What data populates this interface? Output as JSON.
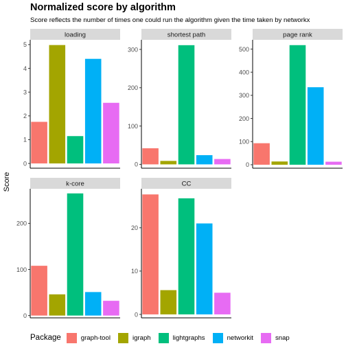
{
  "title": "Normalized score by algorithm",
  "subtitle": "Score reflects the number of times one could run the algorithm given the time taken by networkx",
  "ylabel": "Score",
  "legend": {
    "title": "Package",
    "position": "bottom"
  },
  "chart_data": {
    "type": "bar",
    "categories": [
      "graph-tool",
      "igraph",
      "lightgraphs",
      "networkit",
      "snap"
    ],
    "colors": {
      "graph-tool": "#F8766D",
      "igraph": "#A3A500",
      "lightgraphs": "#00BF7D",
      "networkit": "#00B0F6",
      "snap": "#E76BF3"
    },
    "facets": [
      {
        "name": "loading",
        "values": [
          1.75,
          4.98,
          1.15,
          4.4,
          2.55
        ],
        "ylim": [
          -0.2,
          5.2
        ],
        "ticks": [
          0,
          1,
          2,
          3,
          4,
          5
        ]
      },
      {
        "name": "shortest path",
        "values": [
          42,
          9,
          311,
          24,
          14
        ],
        "ylim": [
          -10,
          325
        ],
        "ticks": [
          0,
          100,
          200,
          300
        ]
      },
      {
        "name": "page rank",
        "values": [
          93,
          14,
          517,
          335,
          13
        ],
        "ylim": [
          -15,
          540
        ],
        "ticks": [
          0,
          100,
          200,
          300,
          400,
          500
        ]
      },
      {
        "name": "k-core",
        "values": [
          108,
          46,
          265,
          51,
          32
        ],
        "ylim": [
          -5,
          275
        ],
        "ticks": [
          0,
          100,
          200
        ]
      },
      {
        "name": "CC",
        "values": [
          27.7,
          5.6,
          26.8,
          21.0,
          5.0
        ],
        "ylim": [
          -0.8,
          29
        ],
        "ticks": [
          0,
          10,
          20
        ]
      }
    ]
  }
}
